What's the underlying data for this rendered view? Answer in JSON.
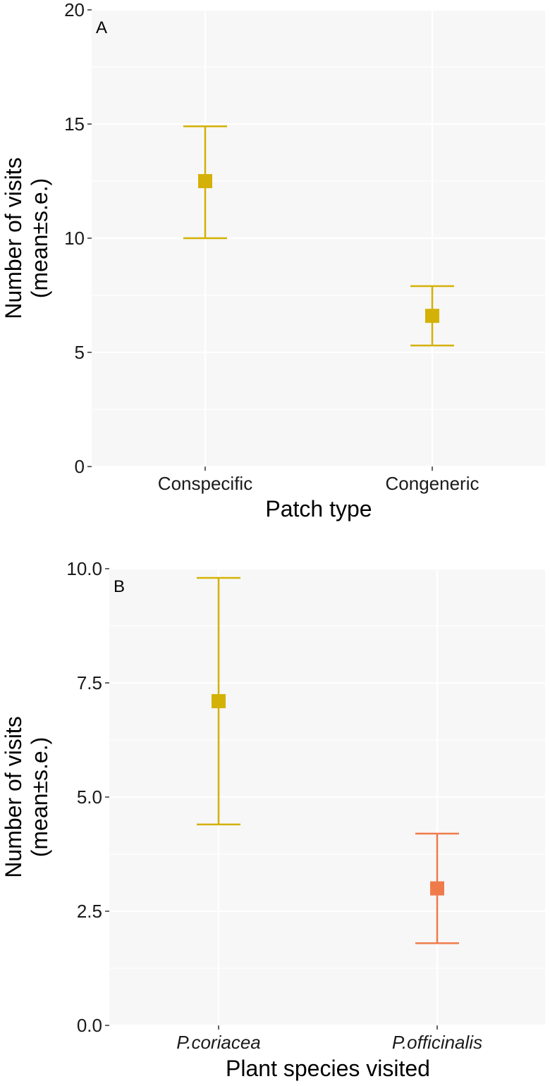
{
  "chart_data": [
    {
      "type": "errorbar",
      "panel_label": "A",
      "xlabel": "Patch type",
      "ylabel_line1": "Number of visits",
      "ylabel_line2": "(mean±s.e.)",
      "categories": [
        "Conspecific",
        "Congeneric"
      ],
      "means": [
        12.5,
        6.6
      ],
      "upper": [
        14.9,
        7.9
      ],
      "lower": [
        10.0,
        5.3
      ],
      "colors": [
        "#d4b106",
        "#d4b106"
      ],
      "ylim": [
        0,
        20
      ],
      "yticks": [
        0,
        5,
        10,
        15,
        20
      ],
      "ytick_labels": [
        "0",
        "5",
        "10",
        "15",
        "20"
      ],
      "italic_categories": false
    },
    {
      "type": "errorbar",
      "panel_label": "B",
      "xlabel": "Plant species visited",
      "ylabel_line1": "Number of visits",
      "ylabel_line2": "(mean±s.e.)",
      "categories": [
        "P.coriacea",
        "P.officinalis"
      ],
      "means": [
        7.1,
        3.0
      ],
      "upper": [
        9.8,
        4.2
      ],
      "lower": [
        4.4,
        1.8
      ],
      "colors": [
        "#d4b106",
        "#ef7b4b"
      ],
      "ylim": [
        0,
        10
      ],
      "yticks": [
        0,
        2.5,
        5,
        7.5,
        10
      ],
      "ytick_labels": [
        "0.0",
        "2.5",
        "5.0",
        "7.5",
        "10.0"
      ],
      "italic_categories": true
    }
  ]
}
